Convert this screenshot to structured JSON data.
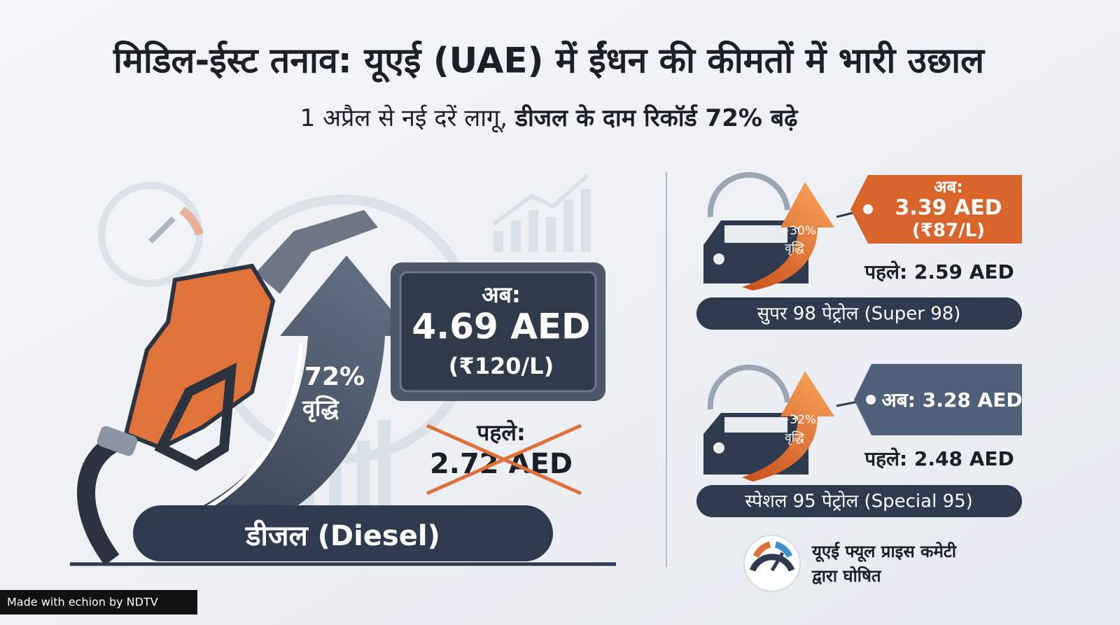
{
  "header": {
    "title": "मिडिल-ईस्ट तनाव: यूएई (UAE) में ईंधन की कीमतों में भारी उछाल",
    "subtitle_regular": "1 अप्रैल से नई दरें लागू,",
    "subtitle_bold": "डीजल के दाम रिकॉर्ड 72% बढ़े"
  },
  "diesel": {
    "increase": "72%",
    "increase_label": "वृद्धि",
    "now_label": "अब:",
    "now_price": "4.69 AED",
    "now_inr": "(₹120/L)",
    "before_label": "पहले:",
    "before_price": "2.72 AED",
    "name": "डीजल (Diesel)"
  },
  "super98": {
    "increase": "~30%",
    "increase_label": "वृद्धि",
    "now_label": "अब:",
    "now_price": "3.39 AED",
    "now_inr": "(₹87/L)",
    "before": "पहले: 2.59 AED",
    "name": "सुपर 98 पेट्रोल (Super 98)"
  },
  "special95": {
    "increase": "~32%",
    "increase_label": "वृद्धि",
    "now": "अब: 3.28 AED",
    "before": "पहले: 2.48 AED",
    "name": "स्पेशल 95 पेट्रोल (Special 95)"
  },
  "footer": {
    "line1": "यूएई फ्यूल प्राइस कमेटी",
    "line2": "द्वारा घोषित"
  },
  "watermark": "Made with echion by NDTV"
}
